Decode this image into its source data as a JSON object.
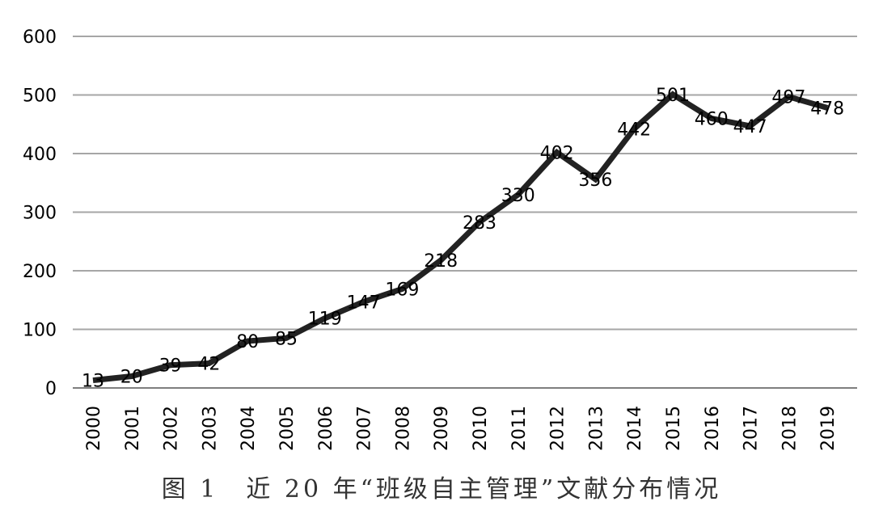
{
  "caption": "图 1　近 20 年“班级自主管理”文献分布情况",
  "chart_data": {
    "type": "line",
    "title": "",
    "xlabel": "",
    "ylabel": "",
    "x": [
      "2000",
      "2001",
      "2002",
      "2003",
      "2004",
      "2005",
      "2006",
      "2007",
      "2008",
      "2009",
      "2010",
      "2011",
      "2012",
      "2013",
      "2014",
      "2015",
      "2016",
      "2017",
      "2018",
      "2019"
    ],
    "series": [
      {
        "values": [
          13,
          20,
          39,
          42,
          80,
          85,
          119,
          147,
          169,
          218,
          283,
          330,
          402,
          356,
          442,
          501,
          460,
          447,
          497,
          478
        ]
      }
    ],
    "ylim": [
      0,
      600
    ],
    "yticks": [
      "0",
      "100",
      "200",
      "300",
      "400",
      "500",
      "600"
    ],
    "grid": true,
    "data_labels": true,
    "line_color": "#222222",
    "grid_color": "#a6a6a6"
  }
}
